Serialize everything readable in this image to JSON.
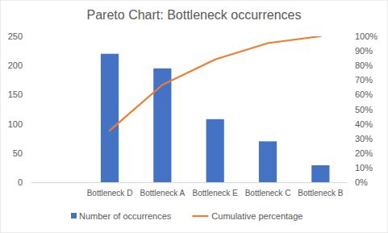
{
  "chart_data": {
    "type": "bar",
    "title": "Pareto Chart: Bottleneck occurrences",
    "categories": [
      null,
      "Bottleneck D",
      "Bottleneck A",
      "Bottleneck E",
      "Bottleneck C",
      "Bottleneck B"
    ],
    "series": [
      {
        "name": "Number of occurrences",
        "type": "bar",
        "color": "#4472c4",
        "values": [
          null,
          220,
          195,
          108,
          70,
          29
        ]
      },
      {
        "name": "Cumulative percentage",
        "type": "line",
        "color": "#ed7d31",
        "axis": "y2",
        "values": [
          null,
          35.4,
          66.7,
          84.1,
          95.3,
          100
        ]
      }
    ],
    "ylim": [
      0,
      250
    ],
    "yticks": [
      0,
      50,
      100,
      150,
      200,
      250
    ],
    "y2lim": [
      0,
      100
    ],
    "y2ticks": [
      {
        "value": 0,
        "label": "0%"
      },
      {
        "value": 10,
        "label": "10%"
      },
      {
        "value": 20,
        "label": "20%"
      },
      {
        "value": 30,
        "label": "30%"
      },
      {
        "value": 40,
        "label": "40%"
      },
      {
        "value": 50,
        "label": "50%"
      },
      {
        "value": 60,
        "label": "60%"
      },
      {
        "value": 70,
        "label": "70%"
      },
      {
        "value": 80,
        "label": "80%"
      },
      {
        "value": 90,
        "label": "90%"
      },
      {
        "value": 100,
        "label": "100%"
      }
    ],
    "grid": false,
    "legend": "bottom"
  }
}
